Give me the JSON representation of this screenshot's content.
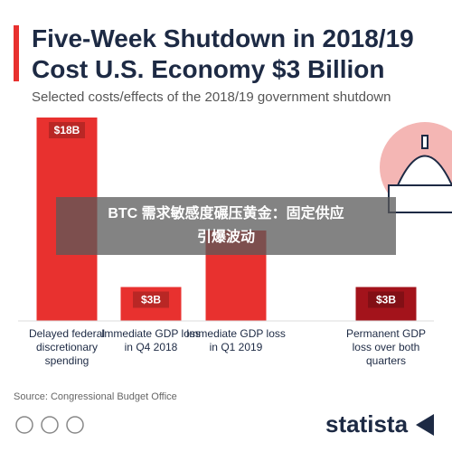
{
  "chart_data": {
    "type": "bar",
    "title": [
      "Five-Week Shutdown in 2018/19",
      "Cost U.S. Economy $3 Billion"
    ],
    "subtitle": "Selected costs/effects of the 2018/19 government shutdown",
    "categories": [
      "Delayed federal discretionary spending",
      "Immediate GDP loss in Q4 2018",
      "Immediate GDP loss in Q1 2019",
      "Permanent GDP loss over both quarters"
    ],
    "values": [
      18,
      3,
      8,
      3
    ],
    "value_labels": [
      "$18B",
      "$3B",
      null,
      "$3B"
    ],
    "colors": [
      "#e8312f",
      "#e8312f",
      "#e8312f",
      "#a3131b"
    ],
    "source": "Source: Congressional Budget Office",
    "brand": "statista",
    "overlay_text": [
      "BTC 需求敏感度碾压黄金：固定供应",
      "引爆波动"
    ]
  }
}
